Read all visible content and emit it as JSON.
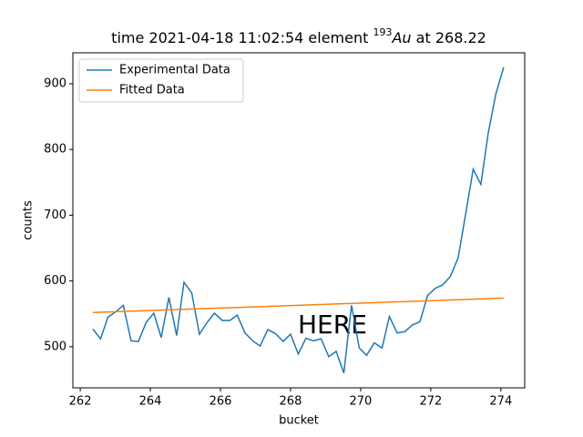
{
  "chart_data": {
    "type": "line",
    "title": {
      "before": "time 2021-04-18 11:02:54 element ",
      "mass": "193",
      "symbol": "Au",
      "after": " at 268.22"
    },
    "x_label": "bucket",
    "y_label": "counts",
    "annotation": "HERE",
    "annotation_color": "#e00000",
    "legend": "upper left",
    "xlim": [
      261.79,
      274.68
    ],
    "ylim": [
      437.5,
      947
    ],
    "xticks": [
      262,
      264,
      266,
      268,
      270,
      272,
      274
    ],
    "yticks": [
      500,
      600,
      700,
      800,
      900
    ],
    "series": [
      {
        "name": "Experimental Data",
        "color": "#1f77b4",
        "x": [
          262.36,
          262.58,
          262.79,
          263.01,
          263.23,
          263.45,
          263.66,
          263.88,
          264.1,
          264.31,
          264.53,
          264.75,
          264.96,
          265.18,
          265.4,
          265.62,
          265.83,
          266.05,
          266.27,
          266.48,
          266.7,
          266.92,
          267.13,
          267.35,
          267.57,
          267.79,
          268.0,
          268.22,
          268.44,
          268.65,
          268.87,
          269.09,
          269.3,
          269.52,
          269.74,
          269.96,
          270.17,
          270.39,
          270.61,
          270.82,
          271.04,
          271.26,
          271.47,
          271.69,
          271.91,
          272.13,
          272.34,
          272.56,
          272.78,
          272.99,
          273.21,
          273.43,
          273.64,
          273.86,
          274.08
        ],
        "values": [
          527,
          512,
          545,
          553,
          563,
          509,
          508,
          537,
          551,
          514,
          575,
          517,
          598,
          582,
          519,
          537,
          551,
          540,
          540,
          548,
          521,
          509,
          501,
          526,
          520,
          508,
          519,
          489,
          513,
          509,
          512,
          485,
          493,
          460,
          563,
          498,
          487,
          506,
          498,
          546,
          521,
          523,
          533,
          538,
          578,
          589,
          594,
          607,
          635,
          700,
          770,
          747,
          825,
          885,
          925
        ]
      },
      {
        "name": "Fitted Data",
        "color": "#ff7f0e",
        "x": [
          262.36,
          274.08
        ],
        "values": [
          552,
          574
        ]
      }
    ]
  }
}
